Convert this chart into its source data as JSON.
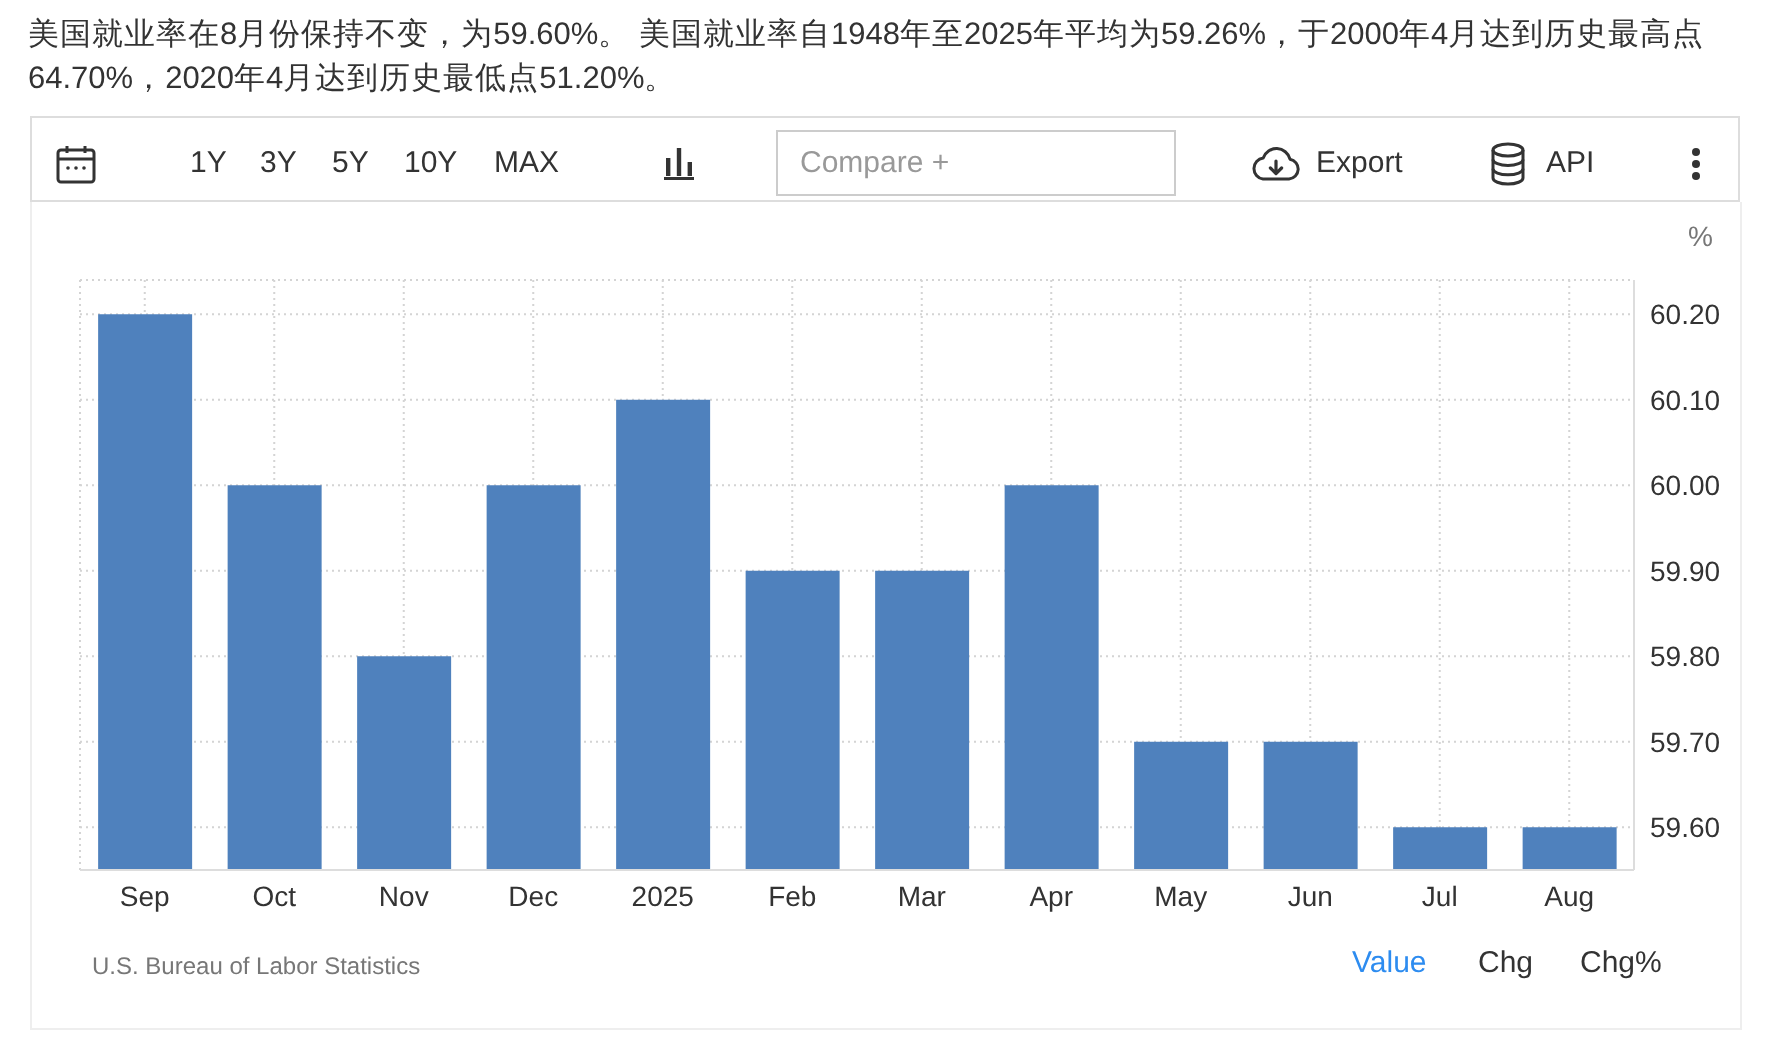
{
  "chart_data": {
    "type": "bar",
    "title": "美国就业率在8月份保持不变，为59.60%。 美国就业率自1948年至2025年平均为59.26%，于2000年4月达到历史最高点64.70%，2020年4月达到历史最低点51.20%。",
    "ylabel": "%",
    "categories": [
      "Sep",
      "Oct",
      "Nov",
      "Dec",
      "2025",
      "Feb",
      "Mar",
      "Apr",
      "May",
      "Jun",
      "Jul",
      "Aug"
    ],
    "values": [
      60.2,
      60.0,
      59.8,
      60.0,
      60.1,
      59.9,
      59.9,
      60.0,
      59.7,
      59.7,
      59.6,
      59.6
    ],
    "color": "#4f81bd",
    "ylim": [
      59.55,
      60.24
    ],
    "yticks": [
      {
        "value": 59.6,
        "label": "59.60"
      },
      {
        "value": 59.7,
        "label": "59.70"
      },
      {
        "value": 59.8,
        "label": "59.80"
      },
      {
        "value": 59.9,
        "label": "59.90"
      },
      {
        "value": 60.0,
        "label": "60.00"
      },
      {
        "value": 60.1,
        "label": "60.10"
      },
      {
        "value": 60.2,
        "label": "60.20"
      }
    ],
    "grid": true,
    "annotations": [
      "1Y",
      "3Y",
      "5Y",
      "10Y",
      "MAX",
      "Compare +",
      "Export",
      "API",
      "U.S. Bureau of Labor Statistics",
      "Value",
      "Chg",
      "Chg%"
    ]
  }
}
